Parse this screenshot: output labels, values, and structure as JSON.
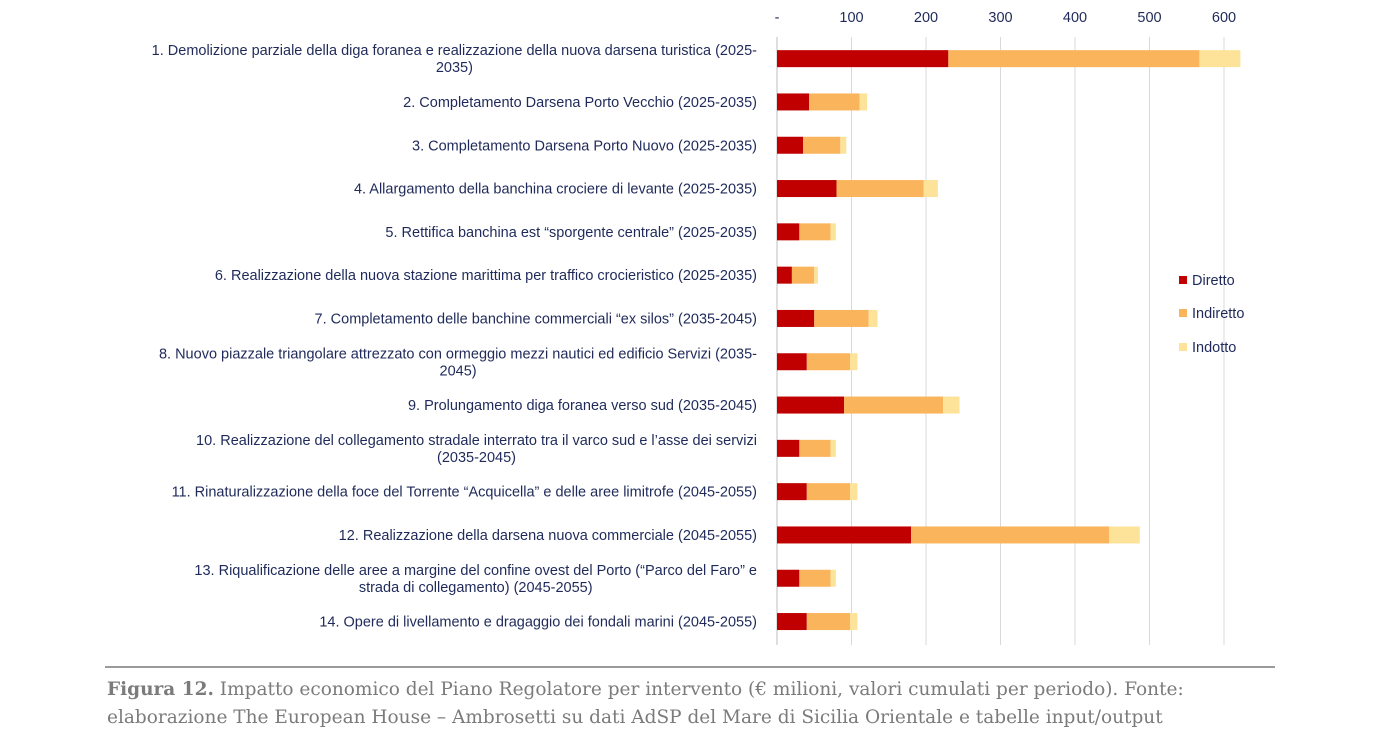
{
  "chart_data": {
    "type": "bar",
    "orientation": "horizontal",
    "stacked": true,
    "categories": [
      [
        "1. Demolizione parziale della diga foranea e realizzazione della nuova darsena turistica (2025-",
        "2035)"
      ],
      [
        "2. Completamento Darsena Porto Vecchio (2025-2035)"
      ],
      [
        "3. Completamento Darsena Porto Nuovo (2025-2035)"
      ],
      [
        "4. Allargamento della banchina crociere di levante (2025-2035)"
      ],
      [
        "5. Rettifica banchina est “sporgente centrale” (2025-2035)"
      ],
      [
        "6. Realizzazione della nuova stazione marittima per traffico crocieristico (2025-2035)"
      ],
      [
        "7. Completamento delle banchine commerciali “ex silos” (2035-2045)"
      ],
      [
        "8. Nuovo piazzale triangolare attrezzato con ormeggio mezzi nautici ed edificio Servizi (2035-",
        "2045)"
      ],
      [
        "9. Prolungamento diga foranea verso sud (2035-2045)"
      ],
      [
        "10. Realizzazione del collegamento stradale interrato tra il varco sud e l’asse dei servizi",
        "(2035-2045)"
      ],
      [
        "11. Rinaturalizzazione della foce del Torrente “Acquicella” e delle aree limitrofe (2045-2055)"
      ],
      [
        "12. Realizzazione della darsena nuova commerciale (2045-2055)"
      ],
      [
        "13. Riqualificazione delle aree a margine del confine ovest del Porto (“Parco del Faro” e",
        "strada di collegamento) (2045-2055)"
      ],
      [
        "14. Opere di livellamento e dragaggio dei fondali marini (2045-2055)"
      ]
    ],
    "series": [
      {
        "name": "Diretto",
        "color": "#c00000",
        "values": [
          230,
          43,
          35,
          80,
          30,
          20,
          50,
          40,
          90,
          30,
          40,
          180,
          30,
          40
        ]
      },
      {
        "name": "Indiretto",
        "color": "#f9b45c",
        "values": [
          337,
          68,
          50,
          117,
          42,
          30,
          73,
          58,
          133,
          42,
          58,
          266,
          42,
          58
        ]
      },
      {
        "name": "Indotto",
        "color": "#fde39a",
        "values": [
          55,
          10,
          8,
          19,
          7,
          5,
          12,
          10,
          22,
          7,
          10,
          41,
          7,
          10
        ]
      }
    ],
    "xticks": [
      "-",
      "100",
      "200",
      "300",
      "400",
      "500",
      "600"
    ],
    "xlim": [
      0,
      650
    ],
    "x_axis_position": "top",
    "gridlines": "vertical",
    "legend_position": "right"
  },
  "caption": {
    "label": "Figura 12.",
    "text": " Impatto economico del Piano Regolatore per intervento (€ milioni, valori cumulati per periodo). Fonte: elaborazione The European House – Ambrosetti su dati AdSP del Mare di Sicilia Orientale e tabelle input/output"
  }
}
